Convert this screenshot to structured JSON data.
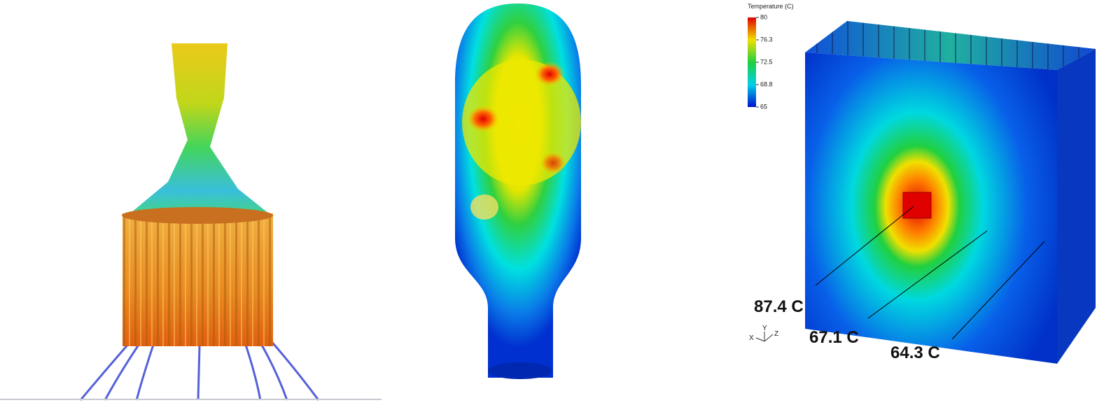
{
  "colorbar": {
    "title": "Temperature (C)",
    "ticks": [
      80,
      76.3,
      72.5,
      68.8,
      65
    ]
  },
  "annotations": [
    "87.4 C",
    "67.1 C",
    "64.3 C"
  ],
  "axes_triad": [
    "X",
    "Y",
    "Z"
  ]
}
